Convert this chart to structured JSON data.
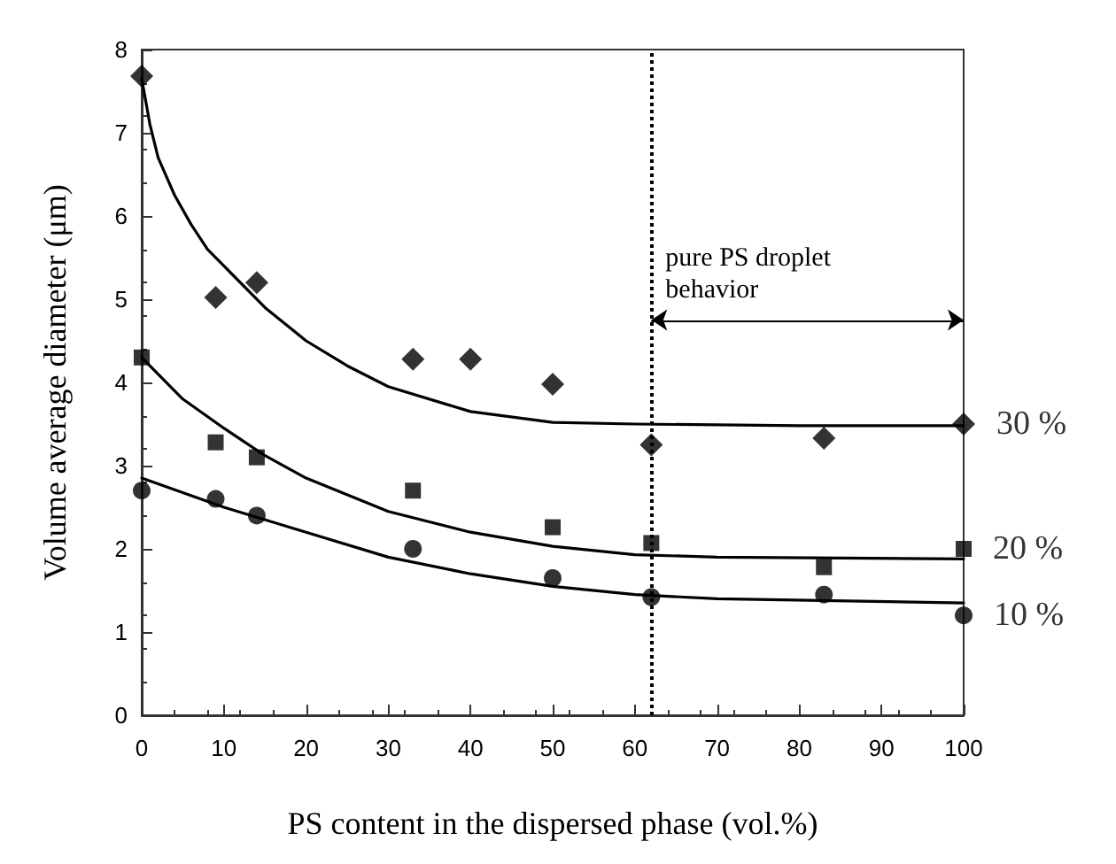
{
  "chart_data": {
    "type": "scatter",
    "xlabel": "PS content in the dispersed phase (vol.%)",
    "ylabel": "Volume average diameter (μm)",
    "xlim": [
      0,
      100
    ],
    "xticks": [
      0,
      10,
      20,
      30,
      40,
      50,
      60,
      70,
      80,
      90,
      100
    ],
    "ylim": [
      0,
      8
    ],
    "yticks": [
      0,
      1,
      2,
      3,
      4,
      5,
      6,
      7,
      8
    ],
    "grid": false,
    "legend": false,
    "series": [
      {
        "name": "30 %",
        "color": "#000000",
        "marker": "diamond",
        "x": [
          0,
          9,
          14,
          33,
          40,
          50,
          62,
          83,
          100
        ],
        "values": [
          7.68,
          5.02,
          5.2,
          4.28,
          4.28,
          3.98,
          3.25,
          3.33,
          3.5
        ]
      },
      {
        "name": "20 %",
        "color": "#000000",
        "marker": "square",
        "x": [
          0,
          9,
          14,
          33,
          50,
          62,
          83,
          100
        ],
        "values": [
          4.3,
          3.28,
          3.1,
          2.7,
          2.26,
          2.07,
          1.78,
          2.0
        ]
      },
      {
        "name": "10 %",
        "color": "#000000",
        "marker": "circle",
        "x": [
          0,
          9,
          14,
          33,
          50,
          62,
          83,
          100
        ],
        "values": [
          2.7,
          2.6,
          2.4,
          2.0,
          1.65,
          1.42,
          1.45,
          1.2
        ]
      },
      {
        "type": "line",
        "color": "#000000",
        "marker": "none",
        "x": [
          0,
          1,
          2,
          4,
          6,
          8,
          10,
          15,
          20,
          25,
          30,
          40,
          50,
          60,
          80,
          100
        ],
        "values": [
          7.65,
          7.1,
          6.7,
          6.25,
          5.9,
          5.6,
          5.4,
          4.9,
          4.5,
          4.2,
          3.95,
          3.65,
          3.52,
          3.5,
          3.48,
          3.48
        ]
      },
      {
        "type": "line",
        "color": "#000000",
        "marker": "none",
        "x": [
          0,
          5,
          10,
          15,
          20,
          30,
          40,
          50,
          60,
          70,
          100
        ],
        "values": [
          4.3,
          3.8,
          3.45,
          3.12,
          2.85,
          2.45,
          2.2,
          2.03,
          1.93,
          1.9,
          1.88
        ]
      },
      {
        "type": "line",
        "color": "#000000",
        "marker": "none",
        "x": [
          0,
          10,
          20,
          30,
          40,
          50,
          60,
          70,
          100
        ],
        "values": [
          2.85,
          2.5,
          2.2,
          1.9,
          1.7,
          1.55,
          1.45,
          1.4,
          1.35
        ]
      }
    ],
    "ref_lines": [
      {
        "axis": "x",
        "value": 62,
        "label": null,
        "line_style": "dotted",
        "color": "#000000"
      }
    ],
    "annotations": [
      {
        "text": "pure PS droplet behavior",
        "x": 62,
        "y": 4.75
      }
    ]
  }
}
